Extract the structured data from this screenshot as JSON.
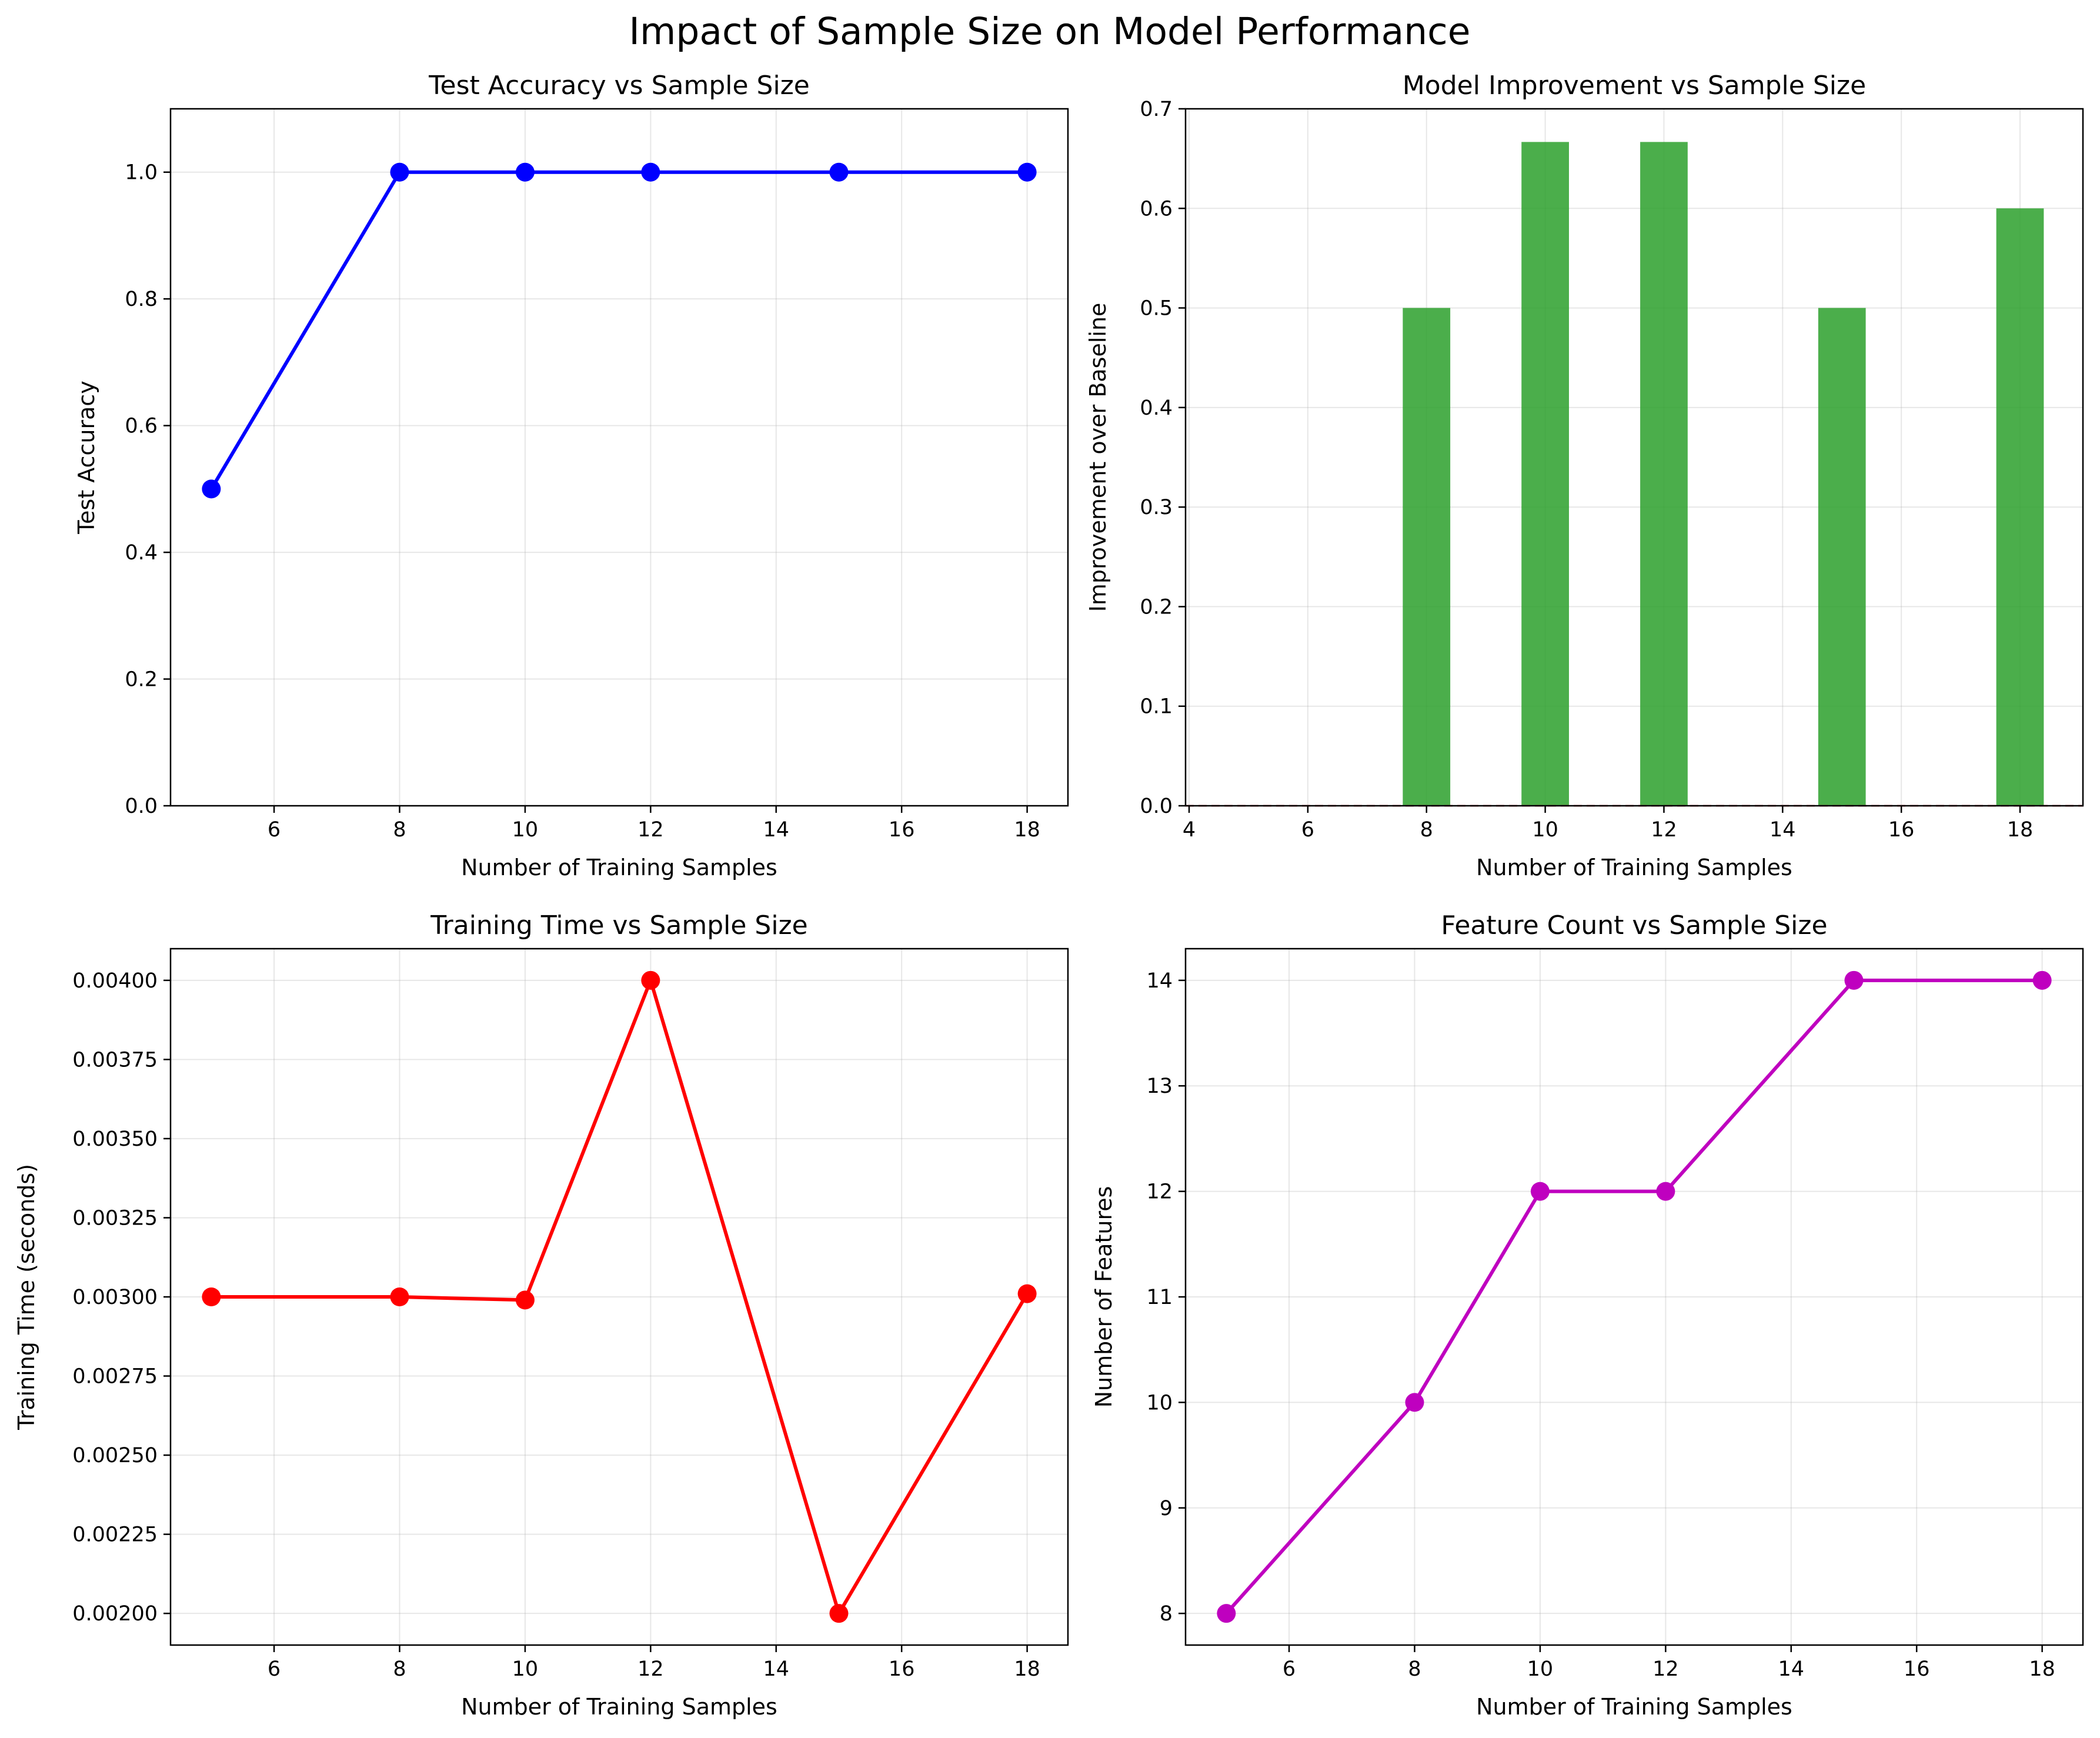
{
  "figure": {
    "suptitle": "Impact of Sample Size on Model Performance"
  },
  "chart_data": [
    {
      "type": "line",
      "title": "Test Accuracy vs Sample Size",
      "xlabel": "Number of Training Samples",
      "ylabel": "Test Accuracy",
      "x": [
        5,
        8,
        10,
        12,
        15,
        18
      ],
      "series": [
        {
          "values": [
            0.5,
            1.0,
            1.0,
            1.0,
            1.0,
            1.0
          ],
          "color": "#0000ff"
        }
      ],
      "xlim": [
        4.35,
        18.65
      ],
      "ylim": [
        0.0,
        1.1
      ],
      "xticks": [
        6,
        8,
        10,
        12,
        14,
        16,
        18
      ],
      "xtick_labels": [
        "6",
        "8",
        "10",
        "12",
        "14",
        "16",
        "18"
      ],
      "yticks": [
        0.0,
        0.2,
        0.4,
        0.6,
        0.8,
        1.0
      ],
      "ytick_labels": [
        "0.0",
        "0.2",
        "0.4",
        "0.6",
        "0.8",
        "1.0"
      ],
      "grid": true,
      "marker": "circle"
    },
    {
      "type": "bar",
      "title": "Model Improvement vs Sample Size",
      "xlabel": "Number of Training Samples",
      "ylabel": "Improvement over Baseline",
      "x": [
        5,
        8,
        10,
        12,
        15,
        18
      ],
      "values": [
        0.0,
        0.5,
        0.6667,
        0.6667,
        0.5,
        0.6
      ],
      "bar_width": 0.8,
      "color": "#2ca02c",
      "baseline": {
        "value": 0.0,
        "color": "#d62728",
        "style": "dashed"
      },
      "xlim": [
        3.94,
        19.06
      ],
      "ylim": [
        0.0,
        0.7
      ],
      "xticks": [
        4,
        6,
        8,
        10,
        12,
        14,
        16,
        18
      ],
      "xtick_labels": [
        "4",
        "6",
        "8",
        "10",
        "12",
        "14",
        "16",
        "18"
      ],
      "yticks": [
        0.0,
        0.1,
        0.2,
        0.3,
        0.4,
        0.5,
        0.6,
        0.7
      ],
      "ytick_labels": [
        "0.0",
        "0.1",
        "0.2",
        "0.3",
        "0.4",
        "0.5",
        "0.6",
        "0.7"
      ],
      "grid": true
    },
    {
      "type": "line",
      "title": "Training Time vs Sample Size",
      "xlabel": "Number of Training Samples",
      "ylabel": "Training Time (seconds)",
      "x": [
        5,
        8,
        10,
        12,
        15,
        18
      ],
      "series": [
        {
          "values": [
            0.003,
            0.003,
            0.00299,
            0.004,
            0.002,
            0.00301
          ],
          "color": "#ff0000"
        }
      ],
      "xlim": [
        4.35,
        18.65
      ],
      "ylim": [
        0.0019,
        0.0041
      ],
      "xticks": [
        6,
        8,
        10,
        12,
        14,
        16,
        18
      ],
      "xtick_labels": [
        "6",
        "8",
        "10",
        "12",
        "14",
        "16",
        "18"
      ],
      "yticks": [
        0.002,
        0.00225,
        0.0025,
        0.00275,
        0.003,
        0.00325,
        0.0035,
        0.00375,
        0.004
      ],
      "ytick_labels": [
        "0.00200",
        "0.00225",
        "0.00250",
        "0.00275",
        "0.00300",
        "0.00325",
        "0.00350",
        "0.00375",
        "0.00400"
      ],
      "grid": true,
      "marker": "circle"
    },
    {
      "type": "line",
      "title": "Feature Count vs Sample Size",
      "xlabel": "Number of Training Samples",
      "ylabel": "Number of Features",
      "x": [
        5,
        8,
        10,
        12,
        15,
        18
      ],
      "series": [
        {
          "values": [
            8,
            10,
            12,
            12,
            14,
            14
          ],
          "color": "#bf00bf"
        }
      ],
      "xlim": [
        4.35,
        18.65
      ],
      "ylim": [
        7.7,
        14.3
      ],
      "xticks": [
        6,
        8,
        10,
        12,
        14,
        16,
        18
      ],
      "xtick_labels": [
        "6",
        "8",
        "10",
        "12",
        "14",
        "16",
        "18"
      ],
      "yticks": [
        8,
        9,
        10,
        11,
        12,
        13,
        14
      ],
      "ytick_labels": [
        "8",
        "9",
        "10",
        "11",
        "12",
        "13",
        "14"
      ],
      "grid": true,
      "marker": "circle"
    }
  ]
}
